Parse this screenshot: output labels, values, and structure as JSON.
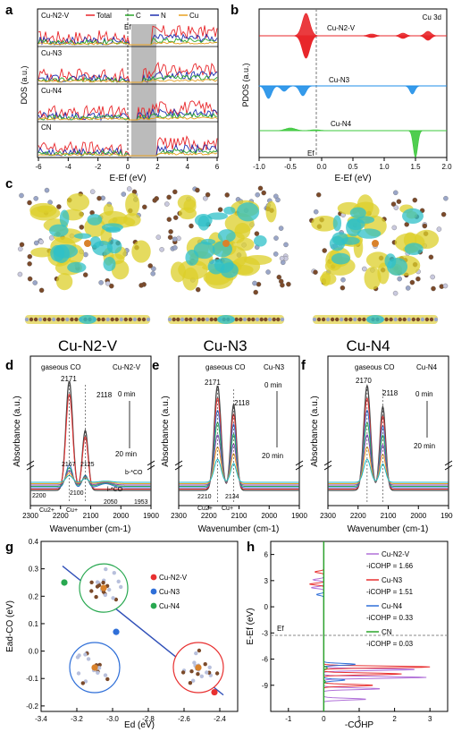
{
  "panels": {
    "a": {
      "letter": "a",
      "legend": [
        "Cu-N2-V",
        "Total",
        "C",
        "N",
        "Cu"
      ],
      "rows": [
        "Cu-N2-V",
        "Cu-N3",
        "Cu-N4",
        "CN"
      ],
      "ylabel": "DOS (a.u.)",
      "xlabel": "E-Ef (eV)",
      "ef_label": "Ef",
      "xticks": [
        "-6",
        "-4",
        "-2",
        "0",
        "2",
        "4",
        "6"
      ],
      "colors": {
        "total": "#e8262a",
        "c": "#2aa62a",
        "n": "#2030b0",
        "cu": "#e8a020"
      }
    },
    "b": {
      "letter": "b",
      "title": "Cu 3d",
      "rows": [
        "Cu-N2-V",
        "Cu-N3",
        "Cu-N4"
      ],
      "ylabel": "PDOS (a.u.)",
      "xlabel": "E-Ef (eV)",
      "ef_label": "Ef",
      "xticks": [
        "-1.0",
        "-0.5",
        "0.0",
        "0.5",
        "1.0",
        "1.5",
        "2.0"
      ],
      "colors": [
        "#e8262a",
        "#1f8fe8",
        "#3cc83c"
      ]
    },
    "c": {
      "letter": "c",
      "labels": [
        "Cu-N2-V",
        "Cu-N3",
        "Cu-N4"
      ]
    },
    "d": {
      "letter": "d",
      "title": "gaseous CO",
      "sample": "Cu-N2-V",
      "t0": "0 min",
      "t1": "20 min",
      "peaks_top": [
        "2171",
        "2118"
      ],
      "peaks_mid": [
        "2167",
        "2125"
      ],
      "peaks_low": [
        "2200",
        "2100",
        "2050",
        "1953"
      ],
      "species": [
        "b-*CO",
        "l-*CO",
        "Cu2+",
        "Cu+"
      ],
      "ylabel": "Absorbance (a.u.)"
    },
    "e": {
      "letter": "e",
      "title": "gaseous CO",
      "sample": "Cu-N3",
      "t0": "0 min",
      "t1": "20 min",
      "peaks_top": [
        "2171",
        "2118"
      ],
      "peaks_low": [
        "2210",
        "2134"
      ],
      "species": [
        "Cu2+",
        "Cu+"
      ],
      "ylabel": "Absorbance (a.u.)"
    },
    "f": {
      "letter": "f",
      "title": "gaseous CO",
      "sample": "Cu-N4",
      "t0": "0 min",
      "t1": "20 min",
      "peaks_top": [
        "2170",
        "2118"
      ],
      "ylabel": "Absorbance (a.u.)"
    },
    "def_axis": {
      "xticks": [
        "2300",
        "2200",
        "2100",
        "2000",
        "1900"
      ],
      "xlabel": "Wavenumber (cm-1)"
    },
    "g": {
      "letter": "g",
      "xlabel": "Ed (eV)",
      "ylabel": "Ead-CO (eV)",
      "legend": [
        "Cu-N2-V",
        "Cu-N3",
        "Cu-N4"
      ],
      "colors": [
        "#e83030",
        "#2f6fd8",
        "#28a850"
      ]
    },
    "h": {
      "letter": "h",
      "xlabel": "-COHP",
      "ylabel": "E-Ef (eV)",
      "ef_label": "Ef",
      "xticks": [
        "-1",
        "0",
        "1",
        "2",
        "3"
      ],
      "yticks": [
        "6",
        "3",
        "0",
        "-3",
        "-6",
        "-9"
      ],
      "legend": [
        "Cu-N2-V",
        "-iCOHP = 1.66",
        "Cu-N3",
        "-iCOHP = 1.51",
        "Cu-N4",
        "-iCOHP = 0.33",
        "CN",
        "-iCOHP = 0.03"
      ],
      "colors": [
        "#b070d8",
        "#e83030",
        "#2f6fd8",
        "#2aa62a"
      ]
    }
  },
  "chart_data": {
    "type": "scatter",
    "panel": "g",
    "xlabel": "Ed (eV)",
    "ylabel": "Ead-CO (eV)",
    "xlim": [
      -3.4,
      -2.3
    ],
    "ylim": [
      -0.22,
      0.4
    ],
    "xticks": [
      -3.4,
      -3.2,
      -3.0,
      -2.8,
      -2.6,
      -2.4
    ],
    "yticks": [
      -0.2,
      -0.1,
      0.0,
      0.1,
      0.2,
      0.3,
      0.4
    ],
    "series": [
      {
        "name": "Cu-N2-V",
        "x": [
          -2.43
        ],
        "y": [
          -0.15
        ]
      },
      {
        "name": "Cu-N3",
        "x": [
          -2.98
        ],
        "y": [
          0.07
        ]
      },
      {
        "name": "Cu-N4",
        "x": [
          -3.27
        ],
        "y": [
          0.25
        ]
      }
    ],
    "fit_line": {
      "x": [
        -3.28,
        -2.38
      ],
      "y": [
        0.31,
        -0.16
      ]
    },
    "legend_position": "top-right"
  }
}
